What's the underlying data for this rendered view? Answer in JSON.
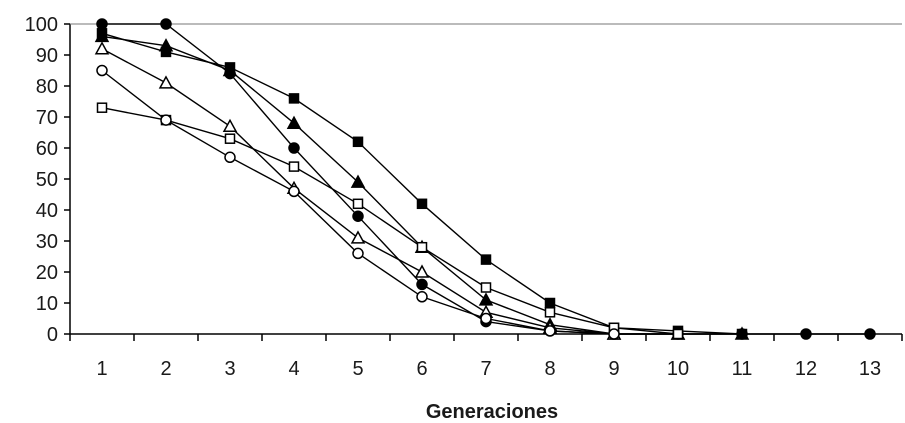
{
  "chart_data": {
    "type": "line",
    "title": "",
    "xlabel": "Generaciones",
    "ylabel": "",
    "x": [
      1,
      2,
      3,
      4,
      5,
      6,
      7,
      8,
      9,
      10,
      11,
      12,
      13
    ],
    "xlim": [
      0.5,
      13.5
    ],
    "ylim": [
      0,
      100
    ],
    "y_ticks": [
      0,
      10,
      20,
      30,
      40,
      50,
      60,
      70,
      80,
      90,
      100
    ],
    "grid": false,
    "legend": "none",
    "top_reference_line": 100,
    "series": [
      {
        "marker": "filled-circle",
        "x": [
          1,
          2,
          3,
          4,
          5,
          6,
          7,
          8,
          9,
          10,
          11,
          12,
          13
        ],
        "values": [
          100,
          100,
          84,
          60,
          38,
          16,
          4,
          1,
          0,
          0,
          0,
          0,
          0
        ]
      },
      {
        "marker": "filled-square",
        "x": [
          1,
          2,
          3,
          4,
          5,
          6,
          7,
          8,
          9,
          10,
          11
        ],
        "values": [
          97,
          91,
          86,
          76,
          62,
          42,
          24,
          10,
          2,
          1,
          0
        ]
      },
      {
        "marker": "filled-triangle",
        "x": [
          1,
          2,
          3,
          4,
          5,
          6,
          7,
          8,
          9,
          10,
          11
        ],
        "values": [
          96,
          93,
          85,
          68,
          49,
          28,
          11,
          3,
          0,
          0,
          0
        ]
      },
      {
        "marker": "open-triangle",
        "x": [
          1,
          2,
          3,
          4,
          5,
          6,
          7,
          8,
          9,
          10
        ],
        "values": [
          92,
          81,
          67,
          47,
          31,
          20,
          7,
          2,
          0,
          0
        ]
      },
      {
        "marker": "open-square",
        "x": [
          1,
          2,
          3,
          4,
          5,
          6,
          7,
          8,
          9,
          10
        ],
        "values": [
          73,
          69,
          63,
          54,
          42,
          28,
          15,
          7,
          2,
          0
        ]
      },
      {
        "marker": "open-circle",
        "x": [
          1,
          2,
          3,
          4,
          5,
          6,
          7,
          8,
          9
        ],
        "values": [
          85,
          69,
          57,
          46,
          26,
          12,
          5,
          1,
          0
        ]
      }
    ]
  }
}
